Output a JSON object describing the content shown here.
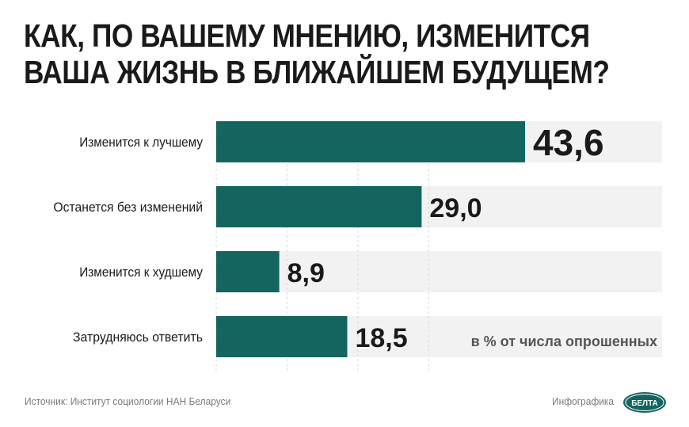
{
  "title": {
    "line1": "КАК, ПО ВАШЕМУ МНЕНИЮ, ИЗМЕНИТСЯ",
    "line2": "ВАША ЖИЗНЬ В БЛИЖАЙШЕМ БУДУЩЕМ?"
  },
  "chart_data": {
    "type": "bar",
    "orientation": "horizontal",
    "categories": [
      "Изменится к лучшему",
      "Останется без изменений",
      "Изменится к худшему",
      "Затрудняюсь ответить"
    ],
    "values": [
      43.6,
      29.0,
      8.9,
      18.5
    ],
    "value_labels": [
      "43,6",
      "29,0",
      "8,9",
      "18,5"
    ],
    "unit_note": "в % от числа опрошенных",
    "xlim": [
      0,
      50
    ],
    "grid": true,
    "colors": {
      "bar": "#14655f",
      "track": "#f2f2f2",
      "grid": "#d9d9d9",
      "text": "#1a1a1a"
    }
  },
  "footer": {
    "source": "Источник: Институт социологии НАН Беларуси",
    "brand_label": "Инфографика",
    "logo_text": "БЕЛТА"
  }
}
